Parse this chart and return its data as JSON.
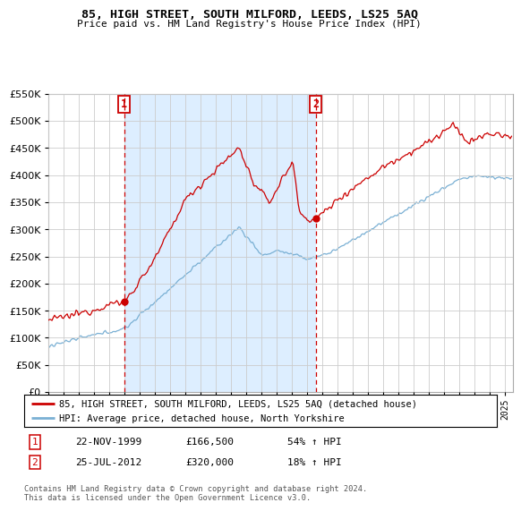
{
  "title": "85, HIGH STREET, SOUTH MILFORD, LEEDS, LS25 5AQ",
  "subtitle": "Price paid vs. HM Land Registry's House Price Index (HPI)",
  "legend_line1": "85, HIGH STREET, SOUTH MILFORD, LEEDS, LS25 5AQ (detached house)",
  "legend_line2": "HPI: Average price, detached house, North Yorkshire",
  "footnote": "Contains HM Land Registry data © Crown copyright and database right 2024.\nThis data is licensed under the Open Government Licence v3.0.",
  "sale1_date": "22-NOV-1999",
  "sale1_price": "£166,500",
  "sale1_hpi": "54% ↑ HPI",
  "sale2_date": "25-JUL-2012",
  "sale2_price": "£320,000",
  "sale2_hpi": "18% ↑ HPI",
  "sale1_year": 2000.0,
  "sale2_year": 2012.58,
  "sale1_price_val": 166500,
  "sale2_price_val": 320000,
  "ylim": [
    0,
    550000
  ],
  "yticks": [
    0,
    50000,
    100000,
    150000,
    200000,
    250000,
    300000,
    350000,
    400000,
    450000,
    500000,
    550000
  ],
  "xlim_start": 1995,
  "xlim_end": 2025.5,
  "red_color": "#cc0000",
  "blue_color": "#7ab0d4",
  "shade_color": "#ddeeff",
  "background_color": "#ffffff",
  "grid_color": "#cccccc"
}
